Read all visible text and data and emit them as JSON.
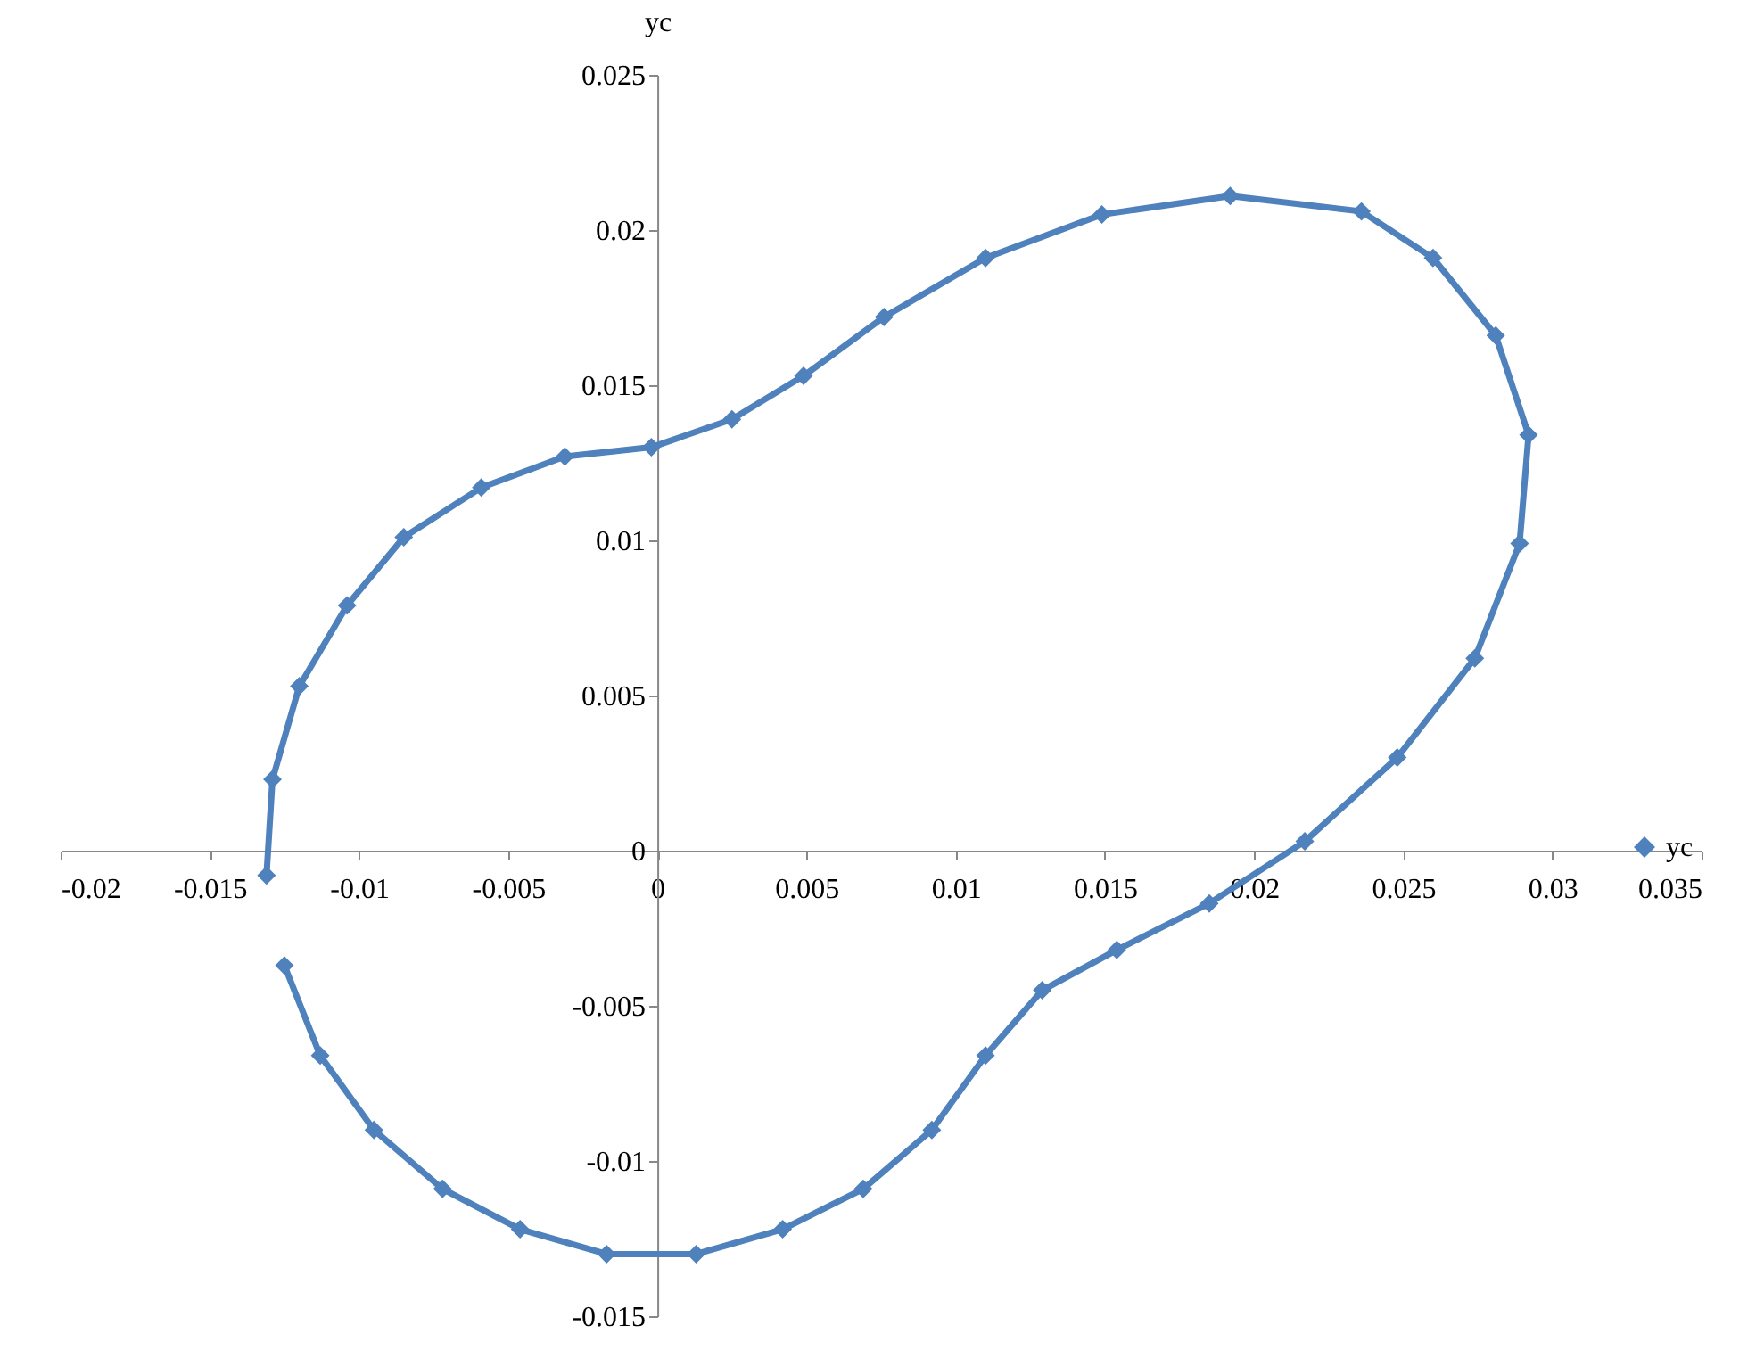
{
  "chart_data": {
    "type": "line",
    "ylabel": "yc",
    "x": [
      -0.0131,
      -0.0129,
      -0.012,
      -0.0104,
      -0.0085,
      -0.0059,
      -0.0031,
      -0.0002,
      0.0025,
      0.0049,
      0.0076,
      0.011,
      0.0149,
      0.0192,
      0.0236,
      0.026,
      0.0281,
      0.0292,
      0.0289,
      0.0274,
      0.0248,
      0.0217,
      0.0185,
      0.0154,
      0.0129,
      0.011,
      0.0092,
      0.0069,
      0.0042,
      0.0013,
      -0.0017,
      -0.0046,
      -0.0072,
      -0.0095,
      -0.0113,
      -0.0125
    ],
    "series": [
      {
        "name": "yc",
        "color": "#4f81bd",
        "values": [
          -0.0008,
          0.0023,
          0.0053,
          0.0079,
          0.0101,
          0.0117,
          0.0127,
          0.013,
          0.0139,
          0.0153,
          0.0172,
          0.0191,
          0.0205,
          0.0211,
          0.0206,
          0.0191,
          0.0166,
          0.0134,
          0.0099,
          0.0062,
          0.003,
          0.0003,
          -0.0017,
          -0.0032,
          -0.0045,
          -0.0066,
          -0.009,
          -0.0109,
          -0.0122,
          -0.013,
          -0.013,
          -0.0122,
          -0.0109,
          -0.009,
          -0.0066,
          -0.0037
        ]
      }
    ],
    "xlim": [
      -0.02,
      0.035
    ],
    "xticks": [
      -0.02,
      -0.015,
      -0.01,
      -0.005,
      0,
      0.005,
      0.01,
      0.015,
      0.02,
      0.025,
      0.03,
      0.035
    ],
    "ylim": [
      -0.015,
      0.025
    ],
    "yticks": [
      -0.015,
      -0.01,
      -0.005,
      0,
      0.005,
      0.01,
      0.015,
      0.02,
      0.025
    ],
    "grid": false,
    "legend": "right",
    "marker": "diamond",
    "line_style": "solid"
  }
}
